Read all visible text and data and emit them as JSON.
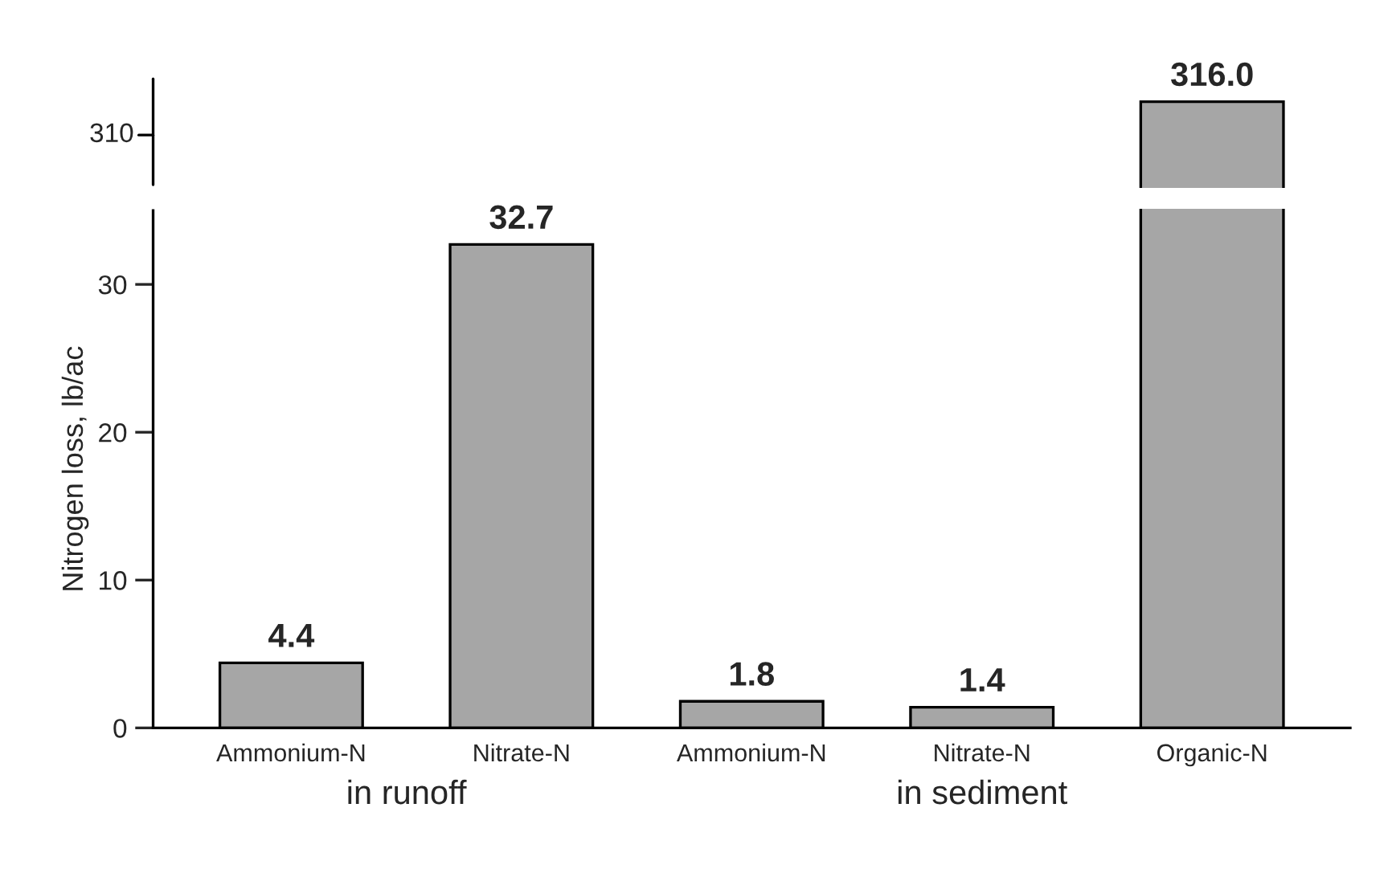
{
  "chart_data": [
    {
      "type": "bar",
      "categories": [
        null,
        null,
        null,
        null,
        null
      ],
      "values": [
        null,
        null,
        null,
        null,
        316.0
      ],
      "value_labels": [
        null,
        null,
        null,
        null,
        "316.0"
      ],
      "color": "#a6a6a6",
      "annotations": [
        "310"
      ],
      "grid": false,
      "legend": false
    },
    {
      "type": "bar",
      "categories": [
        "Ammonium-N",
        "Nitrate-N",
        "Ammonium-N",
        "Nitrate-N",
        "Organic-N"
      ],
      "values": [
        4.4,
        32.7,
        1.8,
        1.4,
        null
      ],
      "value_labels": [
        "4.4",
        "32.7",
        "1.8",
        "1.4",
        null
      ],
      "color": "#a6a6a6",
      "ylim": [
        0,
        35
      ],
      "yticks": [
        0,
        10,
        20,
        30
      ],
      "ylabel": "Nitrogen loss, lb/ac",
      "annotations": [
        "in runoff",
        "in sediment"
      ],
      "grid": false,
      "legend": false
    }
  ]
}
